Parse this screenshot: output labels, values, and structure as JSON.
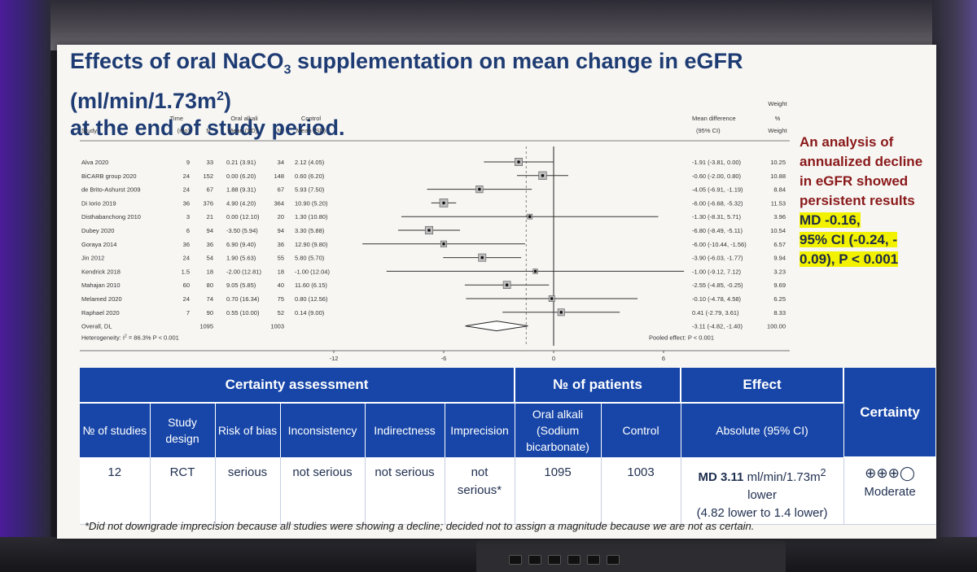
{
  "slide": {
    "title_prefix": "Effects of oral NaCO",
    "title_sub": "3",
    "title_middle": " supplementation on mean change in eGFR (ml/min/1.73m",
    "title_sup": "2",
    "title_suffix": ")",
    "title_line2": "at the end of study period."
  },
  "chart_data": {
    "type": "forest",
    "x_ticks": [
      -12,
      -6,
      0,
      6
    ],
    "xlim": [
      -12,
      6
    ],
    "headers": {
      "study": "Study",
      "time_top": "Time",
      "time_unit": "(mo)",
      "n": "N",
      "oral_alkali": "Oral alkali",
      "mean_sd": "Mean (SD)",
      "control": "Control",
      "md_top": "Mean difference",
      "ci": "(95% CI)",
      "weight_top": "Weight",
      "weight_pct": "%",
      "weight": "Weight"
    },
    "studies": [
      {
        "study": "Alva 2020",
        "time": "9",
        "n1": "33",
        "mean1": "0.21 (3.91)",
        "n2": "34",
        "mean2": "2.12 (4.05)",
        "md_text": "-1.91 (-3.81, 0.00)",
        "weight": "10.25",
        "md": -1.91,
        "lo": -3.81,
        "hi": 0.0
      },
      {
        "study": "BiCARB group 2020",
        "time": "24",
        "n1": "152",
        "mean1": "0.00 (6.20)",
        "n2": "148",
        "mean2": "0.60 (6.20)",
        "md_text": "-0.60 (-2.00, 0.80)",
        "weight": "10.88",
        "md": -0.6,
        "lo": -2.0,
        "hi": 0.8
      },
      {
        "study": "de Brito-Ashurst 2009",
        "time": "24",
        "n1": "67",
        "mean1": "1.88 (9.31)",
        "n2": "67",
        "mean2": "5.93 (7.50)",
        "md_text": "-4.05 (-6.91, -1.19)",
        "weight": "8.84",
        "md": -4.05,
        "lo": -6.91,
        "hi": -1.19
      },
      {
        "study": "Di Iorio 2019",
        "time": "36",
        "n1": "376",
        "mean1": "4.90 (4.20)",
        "n2": "364",
        "mean2": "10.90 (5.20)",
        "md_text": "-6.00 (-6.68, -5.32)",
        "weight": "11.53",
        "md": -6.0,
        "lo": -6.68,
        "hi": -5.32
      },
      {
        "study": "Disthabanchong 2010",
        "time": "3",
        "n1": "21",
        "mean1": "0.00 (12.10)",
        "n2": "20",
        "mean2": "1.30 (10.80)",
        "md_text": "-1.30 (-8.31, 5.71)",
        "weight": "3.96",
        "md": -1.3,
        "lo": -8.31,
        "hi": 5.71
      },
      {
        "study": "Dubey 2020",
        "time": "6",
        "n1": "94",
        "mean1": "-3.50 (5.94)",
        "n2": "94",
        "mean2": "3.30 (5.88)",
        "md_text": "-6.80 (-8.49, -5.11)",
        "weight": "10.54",
        "md": -6.8,
        "lo": -8.49,
        "hi": -5.11
      },
      {
        "study": "Goraya 2014",
        "time": "36",
        "n1": "36",
        "mean1": "6.90 (9.40)",
        "n2": "36",
        "mean2": "12.90 (9.80)",
        "md_text": "-6.00 (-10.44, -1.56)",
        "weight": "6.57",
        "md": -6.0,
        "lo": -10.44,
        "hi": -1.56
      },
      {
        "study": "Jin 2012",
        "time": "24",
        "n1": "54",
        "mean1": "1.90 (5.63)",
        "n2": "55",
        "mean2": "5.80 (5.70)",
        "md_text": "-3.90 (-6.03, -1.77)",
        "weight": "9.94",
        "md": -3.9,
        "lo": -6.03,
        "hi": -1.77
      },
      {
        "study": "Kendrick 2018",
        "time": "1.5",
        "n1": "18",
        "mean1": "-2.00 (12.81)",
        "n2": "18",
        "mean2": "-1.00 (12.04)",
        "md_text": "-1.00 (-9.12, 7.12)",
        "weight": "3.23",
        "md": -1.0,
        "lo": -9.12,
        "hi": 7.12
      },
      {
        "study": "Mahajan 2010",
        "time": "60",
        "n1": "80",
        "mean1": "9.05 (5.85)",
        "n2": "40",
        "mean2": "11.60 (6.15)",
        "md_text": "-2.55 (-4.85, -0.25)",
        "weight": "9.69",
        "md": -2.55,
        "lo": -4.85,
        "hi": -0.25
      },
      {
        "study": "Melamed 2020",
        "time": "24",
        "n1": "74",
        "mean1": "0.70 (16.34)",
        "n2": "75",
        "mean2": "0.80 (12.56)",
        "md_text": "-0.10 (-4.78, 4.58)",
        "weight": "6.25",
        "md": -0.1,
        "lo": -4.78,
        "hi": 4.58
      },
      {
        "study": "Raphael 2020",
        "time": "7",
        "n1": "90",
        "mean1": "0.55 (10.00)",
        "n2": "52",
        "mean2": "0.14 (9.00)",
        "md_text": "0.41 (-2.79, 3.61)",
        "weight": "8.33",
        "md": 0.41,
        "lo": -2.79,
        "hi": 3.61
      }
    ],
    "overall": {
      "study": "Overall, DL",
      "n1": "1095",
      "n2": "1003",
      "md_text": "-3.11 (-4.82, -1.40)",
      "weight": "100.00",
      "md": -3.11,
      "lo": -4.82,
      "hi": -1.4
    },
    "heterogeneity_prefix": "Heterogeneity: I",
    "heterogeneity_sup": "2",
    "heterogeneity_suffix": " = 86.3%  P < 0.001",
    "pooled_effect": "Pooled effect: P  < 0.001",
    "reference_dashed_at": -1.5
  },
  "annotation": {
    "lines": [
      "An analysis of",
      "annualized decline",
      "in eGFR showed",
      "persistent results"
    ],
    "highlight": [
      "MD -0.16,",
      "95% CI (-0.24, -",
      "0.09), P < 0.001"
    ]
  },
  "grade_table": {
    "group_headers": {
      "certainty_assessment": "Certainty assessment",
      "patients": "№ of patients",
      "effect": "Effect",
      "certainty": "Certainty"
    },
    "columns": {
      "n_studies": "№ of studies",
      "design": "Study design",
      "risk_of_bias": "Risk of bias",
      "inconsistency": "Inconsistency",
      "indirectness": "Indirectness",
      "imprecision": "Imprecision",
      "oral_alkali": "Oral alkali (Sodium bicarbonate)",
      "control": "Control",
      "absolute": "Absolute (95% CI)"
    },
    "row": {
      "n_studies": "12",
      "design": "RCT",
      "risk_of_bias": "serious",
      "inconsistency": "not serious",
      "indirectness": "not serious",
      "imprecision": "not serious*",
      "oral_alkali": "1095",
      "control": "1003",
      "effect_bold": "MD 3.11",
      "effect_unit": " ml/min/1.73m",
      "effect_sup": "2",
      "effect_line2": "lower",
      "effect_line3": "(4.82 lower to 1.4 lower)",
      "certainty_symbols": "⊕⊕⊕◯",
      "certainty_label": "Moderate"
    },
    "footnote": "*Did not downgrade imprecision because all studies were showing a decline; decided not to assign a magnitude because we are not as certain."
  }
}
